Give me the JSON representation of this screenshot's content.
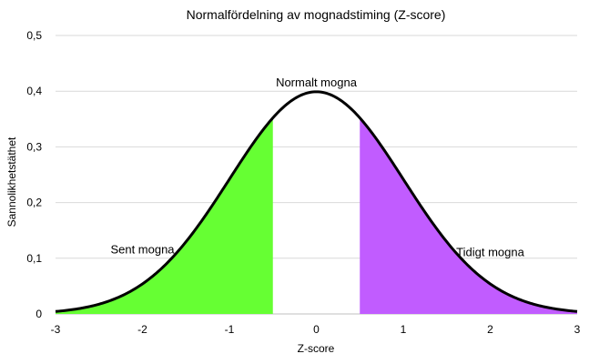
{
  "chart_data": {
    "type": "area",
    "title": "Normalfördelning av mognadstiming (Z-score)",
    "xlabel": "Z-score",
    "ylabel": "Sannolikhetstäthet",
    "xlim": [
      -3,
      3
    ],
    "ylim": [
      0,
      0.5
    ],
    "x_ticks": [
      -3,
      -2,
      -1,
      0,
      1,
      2,
      3
    ],
    "x_tick_labels": [
      "-3",
      "-2",
      "-1",
      "0",
      "1",
      "2",
      "3"
    ],
    "y_ticks": [
      0,
      0.1,
      0.2,
      0.3,
      0.4,
      0.5
    ],
    "y_tick_labels": [
      "0",
      "0,1",
      "0,2",
      "0,3",
      "0,4",
      "0,5"
    ],
    "grid": true,
    "curve": {
      "name": "Normal PDF",
      "mean": 0,
      "sd": 1,
      "color": "#000000"
    },
    "regions": [
      {
        "name": "Sent mogna",
        "from": -3,
        "to": -0.5,
        "color": "#66ff33"
      },
      {
        "name": "Normalt mogna",
        "from": -0.5,
        "to": 0.5,
        "color": "#ffffff"
      },
      {
        "name": "Tidigt mogna",
        "from": 0.5,
        "to": 3,
        "color": "#c15cff"
      }
    ],
    "annotations": [
      {
        "text": "Sent mogna",
        "x": -2,
        "y": 0.115
      },
      {
        "text": "Normalt mogna",
        "x": 0,
        "y": 0.415
      },
      {
        "text": "Tidigt mogna",
        "x": 2,
        "y": 0.11
      }
    ]
  }
}
